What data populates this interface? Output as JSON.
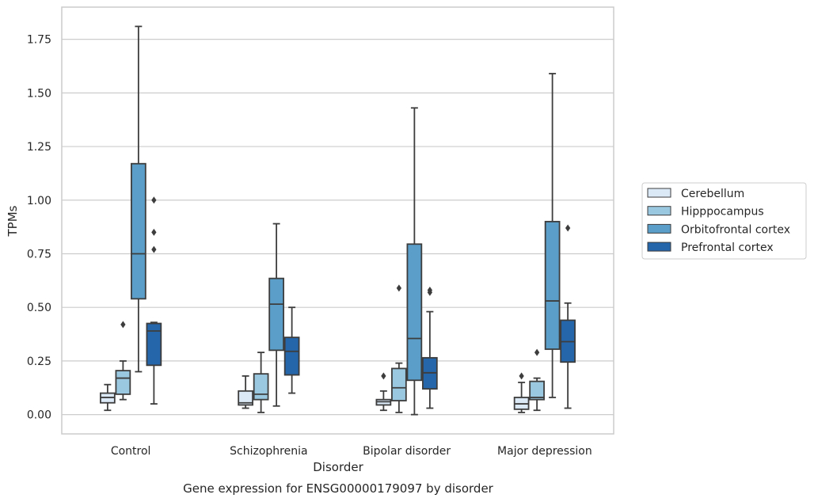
{
  "chart_data": {
    "type": "box",
    "caption": "Gene expression for ENSG00000179097 by disorder",
    "xlabel": "Disorder",
    "ylabel": "TPMs",
    "ylim": [
      -0.09,
      1.9
    ],
    "yticks": [
      "0.00",
      "0.25",
      "0.50",
      "0.75",
      "1.00",
      "1.25",
      "1.50",
      "1.75"
    ],
    "grid": true,
    "legend_position": "right",
    "categories": [
      "Control",
      "Schizophrenia",
      "Bipolar disorder",
      "Major depression"
    ],
    "series": [
      {
        "name": "Cerebellum",
        "color": "#dbe9f6",
        "boxes": [
          {
            "whisker_low": 0.02,
            "q1": 0.055,
            "median": 0.08,
            "q3": 0.1,
            "whisker_high": 0.14,
            "outliers": []
          },
          {
            "whisker_low": 0.03,
            "q1": 0.045,
            "median": 0.055,
            "q3": 0.11,
            "whisker_high": 0.18,
            "outliers": []
          },
          {
            "whisker_low": 0.02,
            "q1": 0.045,
            "median": 0.06,
            "q3": 0.07,
            "whisker_high": 0.11,
            "outliers": [
              0.18
            ]
          },
          {
            "whisker_low": 0.01,
            "q1": 0.025,
            "median": 0.05,
            "q3": 0.08,
            "whisker_high": 0.15,
            "outliers": [
              0.18
            ]
          }
        ]
      },
      {
        "name": "Hipppocampus",
        "color": "#9ac8e0",
        "boxes": [
          {
            "whisker_low": 0.07,
            "q1": 0.095,
            "median": 0.17,
            "q3": 0.205,
            "whisker_high": 0.25,
            "outliers": [
              0.42
            ]
          },
          {
            "whisker_low": 0.01,
            "q1": 0.07,
            "median": 0.095,
            "q3": 0.19,
            "whisker_high": 0.29,
            "outliers": []
          },
          {
            "whisker_low": 0.01,
            "q1": 0.065,
            "median": 0.125,
            "q3": 0.215,
            "whisker_high": 0.24,
            "outliers": [
              0.59
            ]
          },
          {
            "whisker_low": 0.02,
            "q1": 0.07,
            "median": 0.08,
            "q3": 0.155,
            "whisker_high": 0.17,
            "outliers": [
              0.29
            ]
          }
        ]
      },
      {
        "name": "Orbitofrontal cortex",
        "color": "#5a9ec9",
        "boxes": [
          {
            "whisker_low": 0.2,
            "q1": 0.54,
            "median": 0.75,
            "q3": 1.17,
            "whisker_high": 1.81,
            "outliers": []
          },
          {
            "whisker_low": 0.04,
            "q1": 0.3,
            "median": 0.515,
            "q3": 0.635,
            "whisker_high": 0.89,
            "outliers": []
          },
          {
            "whisker_low": 0.0,
            "q1": 0.16,
            "median": 0.355,
            "q3": 0.795,
            "whisker_high": 1.43,
            "outliers": []
          },
          {
            "whisker_low": 0.08,
            "q1": 0.305,
            "median": 0.53,
            "q3": 0.9,
            "whisker_high": 1.59,
            "outliers": []
          }
        ]
      },
      {
        "name": "Prefrontal cortex",
        "color": "#2565a9",
        "boxes": [
          {
            "whisker_low": 0.05,
            "q1": 0.23,
            "median": 0.39,
            "q3": 0.425,
            "whisker_high": 0.43,
            "outliers": [
              0.77,
              0.85,
              1.0
            ]
          },
          {
            "whisker_low": 0.1,
            "q1": 0.185,
            "median": 0.295,
            "q3": 0.36,
            "whisker_high": 0.5,
            "outliers": []
          },
          {
            "whisker_low": 0.03,
            "q1": 0.12,
            "median": 0.195,
            "q3": 0.265,
            "whisker_high": 0.48,
            "outliers": [
              0.57,
              0.58
            ]
          },
          {
            "whisker_low": 0.03,
            "q1": 0.245,
            "median": 0.34,
            "q3": 0.44,
            "whisker_high": 0.52,
            "outliers": [
              0.87
            ]
          }
        ]
      }
    ]
  }
}
